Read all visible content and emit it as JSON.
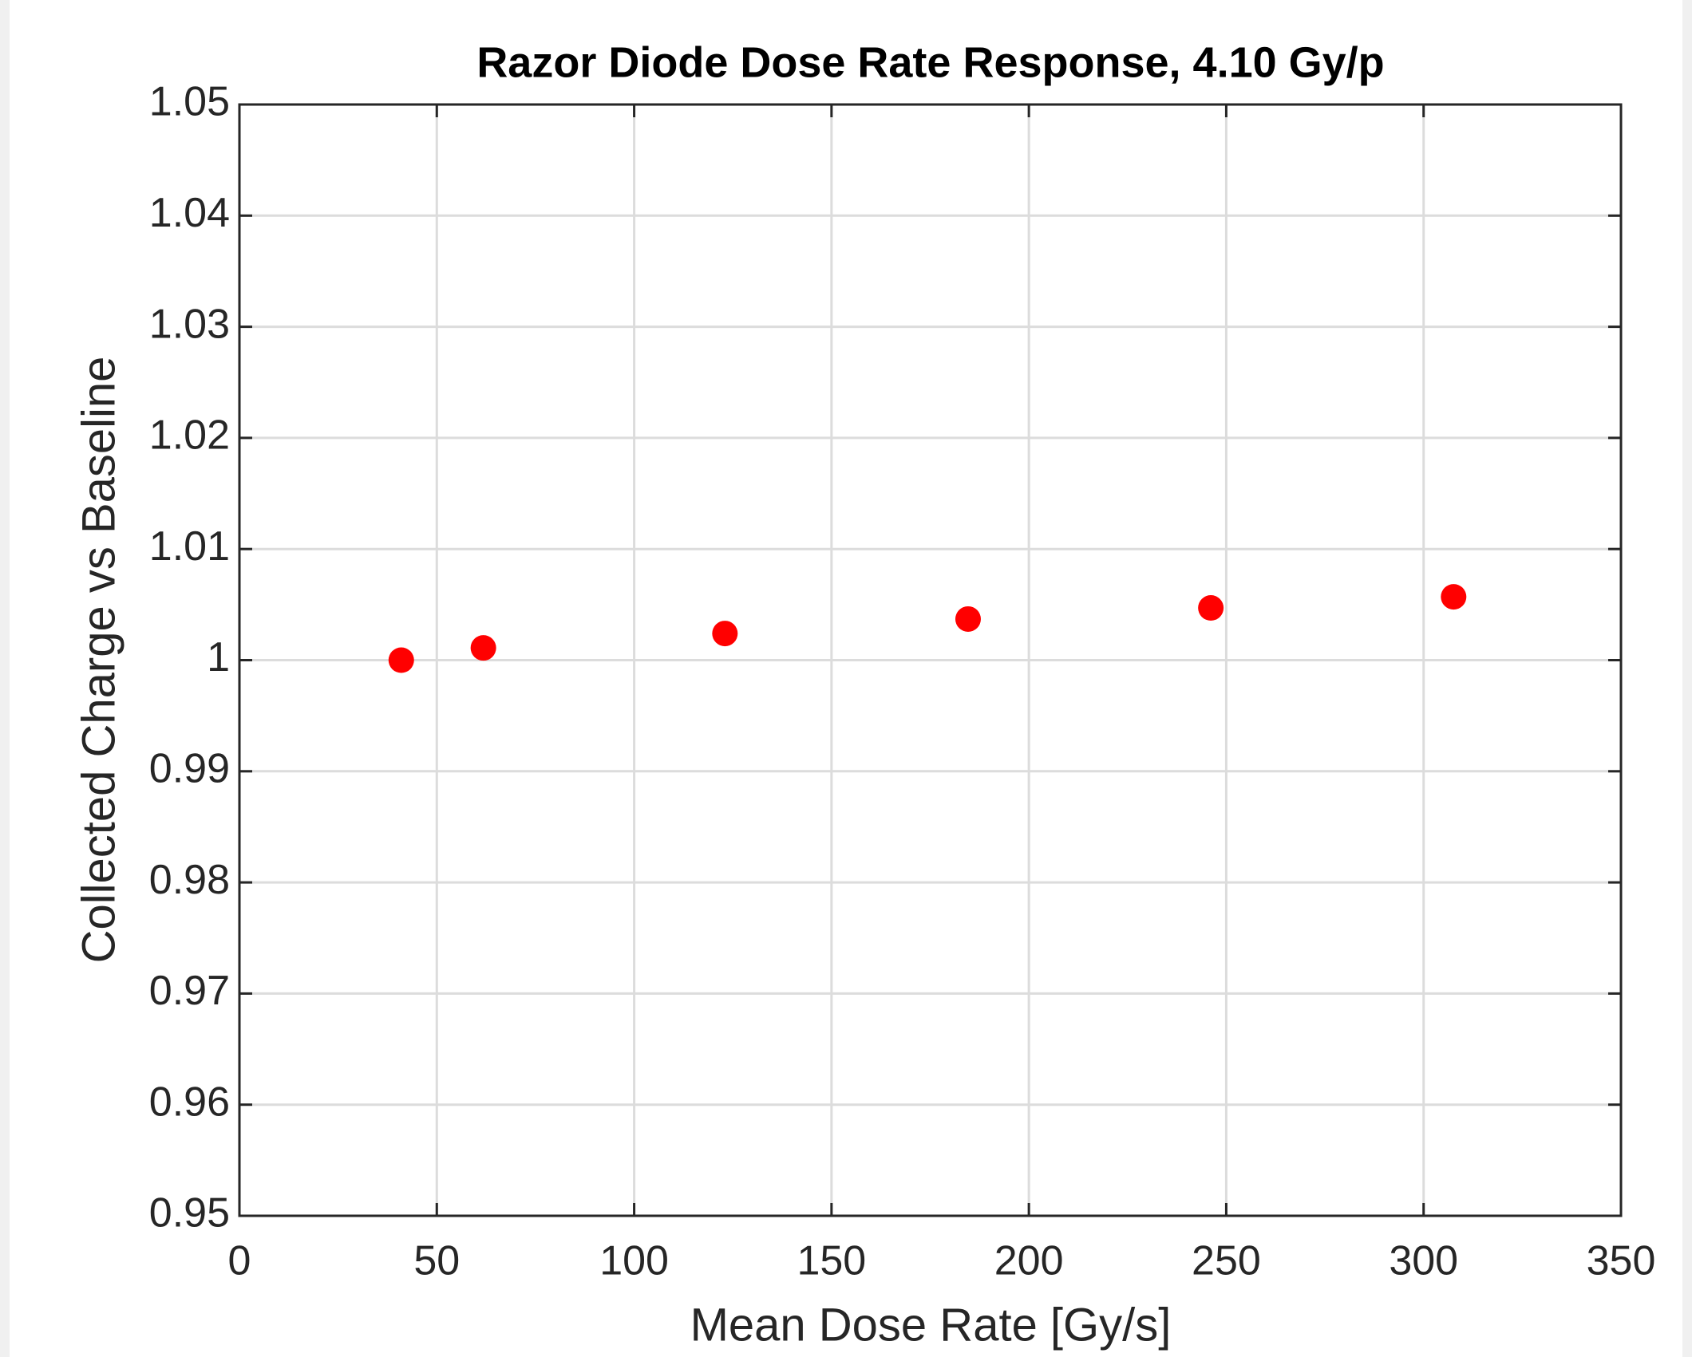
{
  "chart_data": {
    "type": "scatter",
    "title": "Razor Diode Dose Rate Response, 4.10 Gy/p",
    "x_label": "Mean Dose Rate [Gy/s]",
    "y_label": "Collected Charge vs Baseline",
    "series": [
      {
        "name": "data",
        "color": "#ff0000",
        "x": [
          41.0,
          61.8,
          123.0,
          184.6,
          246.1,
          307.6
        ],
        "values": [
          1.0,
          1.0011,
          1.0024,
          1.0037,
          1.0047,
          1.0057
        ]
      }
    ],
    "xlim": [
      0,
      350
    ],
    "xticks": [
      0,
      50,
      100,
      150,
      200,
      250,
      300,
      350
    ],
    "ylim": [
      0.95,
      1.05
    ],
    "yticks": [
      0.95,
      0.96,
      0.97,
      0.98,
      0.99,
      1,
      1.01,
      1.02,
      1.03,
      1.04,
      1.05
    ],
    "grid": true
  }
}
